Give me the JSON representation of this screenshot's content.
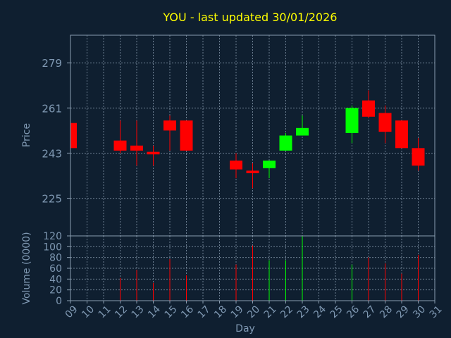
{
  "chart_data": {
    "type": "candlestick",
    "title": "YOU - last updated 30/01/2026",
    "xlabel": "Day",
    "price_ylabel": "Price",
    "volume_ylabel": "Volume (0000)",
    "price_ylim": [
      210,
      290
    ],
    "price_ticks": [
      225,
      243,
      261,
      279
    ],
    "volume_ylim": [
      0,
      120
    ],
    "volume_ticks": [
      0,
      20,
      40,
      60,
      80,
      100,
      120
    ],
    "x_ticks": [
      "09",
      "10",
      "11",
      "12",
      "13",
      "14",
      "15",
      "16",
      "17",
      "18",
      "19",
      "20",
      "21",
      "22",
      "23",
      "24",
      "25",
      "26",
      "27",
      "28",
      "29",
      "30",
      "31"
    ],
    "up_color": "#00ff00",
    "down_color": "#ff0000",
    "candles": [
      {
        "day": "09",
        "open": 255,
        "close": 245,
        "high": 255,
        "low": 245,
        "volume": 0
      },
      {
        "day": "12",
        "open": 248,
        "close": 244,
        "high": 256,
        "low": 243,
        "volume": 42
      },
      {
        "day": "13",
        "open": 246,
        "close": 244,
        "high": 256,
        "low": 238,
        "volume": 57
      },
      {
        "day": "14",
        "open": 243.5,
        "close": 242.5,
        "high": 246,
        "low": 238,
        "volume": 33
      },
      {
        "day": "15",
        "open": 256,
        "close": 252,
        "high": 258,
        "low": 244,
        "volume": 77
      },
      {
        "day": "16",
        "open": 256,
        "close": 244,
        "high": 256,
        "low": 244,
        "volume": 47
      },
      {
        "day": "19",
        "open": 240,
        "close": 236.5,
        "high": 243,
        "low": 233,
        "volume": 67
      },
      {
        "day": "20",
        "open": 236,
        "close": 235,
        "high": 239,
        "low": 229,
        "volume": 102
      },
      {
        "day": "21",
        "open": 237,
        "close": 240,
        "high": 240,
        "low": 233,
        "volume": 75
      },
      {
        "day": "22",
        "open": 244,
        "close": 250,
        "high": 251,
        "low": 244,
        "volume": 75
      },
      {
        "day": "23",
        "open": 250,
        "close": 253,
        "high": 258,
        "low": 250,
        "volume": 120
      },
      {
        "day": "26",
        "open": 251,
        "close": 261,
        "high": 262,
        "low": 247,
        "volume": 67
      },
      {
        "day": "27",
        "open": 264,
        "close": 257.5,
        "high": 268,
        "low": 257,
        "volume": 80
      },
      {
        "day": "28",
        "open": 259,
        "close": 251.5,
        "high": 262,
        "low": 247,
        "volume": 69
      },
      {
        "day": "29",
        "open": 256,
        "close": 245,
        "high": 256,
        "low": 245,
        "volume": 50
      },
      {
        "day": "30",
        "open": 245,
        "close": 238,
        "high": 249,
        "low": 236,
        "volume": 85
      }
    ]
  }
}
